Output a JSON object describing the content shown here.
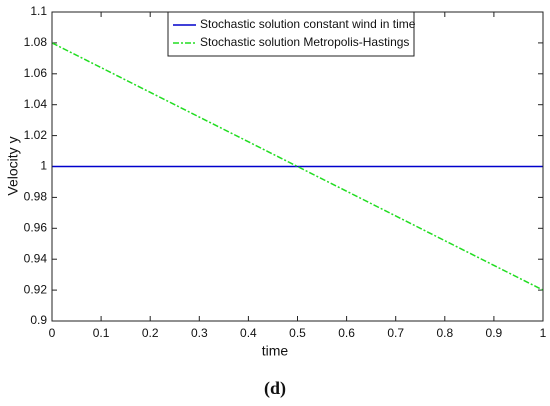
{
  "chart_data": {
    "type": "line",
    "x": [
      0,
      1
    ],
    "series": [
      {
        "name": "Stochastic solution constant wind in time",
        "color": "#0000cc",
        "dash": false,
        "values": [
          1,
          1
        ]
      },
      {
        "name": "Stochastic solution Metropolis-Hastings",
        "color": "#22dd22",
        "dash": true,
        "values": [
          1.08,
          0.92
        ]
      }
    ],
    "xlabel": "time",
    "ylabel": "Velocity y",
    "xlim": [
      0,
      1
    ],
    "xticks": [
      0,
      0.1,
      0.2,
      0.3,
      0.4,
      0.5,
      0.6,
      0.7,
      0.8,
      0.9,
      1
    ],
    "ylim": [
      0.9,
      1.1
    ],
    "yticks": [
      0.9,
      0.92,
      0.94,
      0.96,
      0.98,
      1,
      1.02,
      1.04,
      1.06,
      1.08,
      1.1
    ],
    "legend": "top",
    "caption": "(d)"
  }
}
